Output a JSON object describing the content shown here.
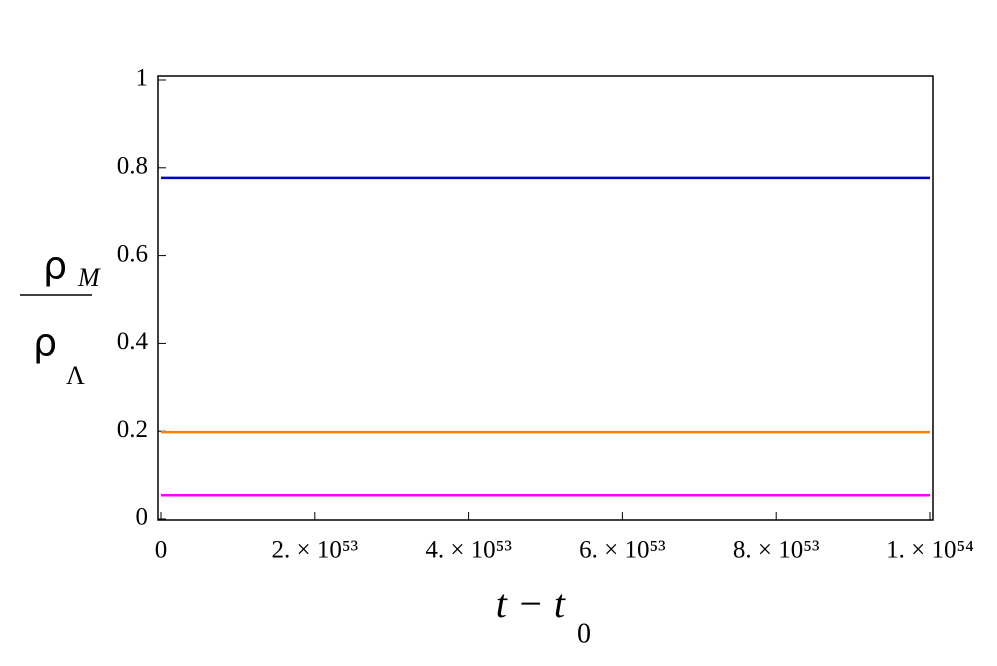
{
  "chart_data": {
    "type": "line",
    "x": [
      0,
      1e+54
    ],
    "series": [
      {
        "color": "#0000cc",
        "values": [
          0.777,
          0.777
        ]
      },
      {
        "color": "#ff8000",
        "values": [
          0.198,
          0.198
        ]
      },
      {
        "color": "#ff00ff",
        "values": [
          0.054,
          0.054
        ]
      }
    ],
    "xlim": [
      0,
      1e+54
    ],
    "xticks": [
      0,
      {
        "value": 2e+53,
        "label": "2. × 10⁵³"
      },
      {
        "value": 4e+53,
        "label": "4. × 10⁵³"
      },
      {
        "value": 6e+53,
        "label": "6. × 10⁵³"
      },
      {
        "value": 8e+53,
        "label": "8. × 10⁵³"
      },
      {
        "value": 1e+54,
        "label": "1. × 10⁵⁴"
      }
    ],
    "ylim": [
      0,
      1
    ],
    "yticks": [
      0,
      0.2,
      0.4,
      0.6,
      0.8,
      1
    ],
    "x_label": {
      "main": "t − t",
      "sub": "0"
    },
    "y_label": {
      "numerator": "ρ",
      "numerator_sub": "M",
      "denominator": "ρ",
      "denominator_sub": "Λ"
    }
  }
}
